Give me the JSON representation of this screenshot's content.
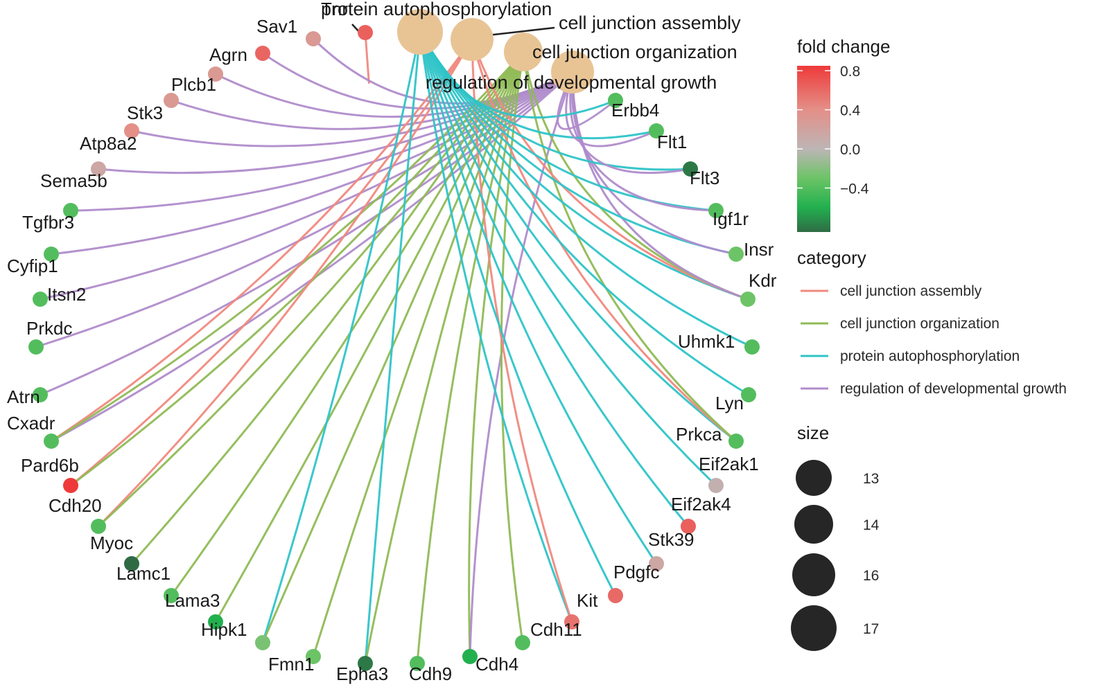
{
  "title": "",
  "categories": [
    {
      "id": "tnr",
      "label": "Tnr",
      "color": "#F0897E",
      "size": 13
    },
    {
      "id": "pa",
      "label": "protein autophosphorylation",
      "color": "#2EC4C8",
      "size": 17
    },
    {
      "id": "cja",
      "label": "cell junction assembly",
      "color": "#F0897E",
      "size": 16
    },
    {
      "id": "cjo",
      "label": "cell junction organization",
      "color": "#8FBA55",
      "size": 14
    },
    {
      "id": "rdg",
      "label": "regulation of developmental growth",
      "color": "#B08CCB",
      "size": 16
    }
  ],
  "genes": [
    {
      "label": "Tnr",
      "fc": 0.65
    },
    {
      "label": "Sav1",
      "fc": 0.3
    },
    {
      "label": "Agrn",
      "fc": 0.62
    },
    {
      "label": "Plcb1",
      "fc": 0.3
    },
    {
      "label": "Stk3",
      "fc": 0.3
    },
    {
      "label": "Atp8a2",
      "fc": 0.4
    },
    {
      "label": "Sema5b",
      "fc": 0.15
    },
    {
      "label": "Tgfbr3",
      "fc": -0.4
    },
    {
      "label": "Cyfip1",
      "fc": -0.4
    },
    {
      "label": "Itsn2",
      "fc": -0.4
    },
    {
      "label": "Prkdc",
      "fc": -0.4
    },
    {
      "label": "Atrn",
      "fc": -0.4
    },
    {
      "label": "Cxadr",
      "fc": -0.4
    },
    {
      "label": "Pard6b",
      "fc": 0.85
    },
    {
      "label": "Cdh20",
      "fc": -0.4
    },
    {
      "label": "Myoc",
      "fc": -0.85
    },
    {
      "label": "Lamc1",
      "fc": -0.4
    },
    {
      "label": "Lama3",
      "fc": -0.6
    },
    {
      "label": "Hipk1",
      "fc": -0.25
    },
    {
      "label": "Fmn1",
      "fc": -0.3
    },
    {
      "label": "Epha3",
      "fc": -0.8
    },
    {
      "label": "Cdh9",
      "fc": -0.4
    },
    {
      "label": "Cdh4",
      "fc": -0.6
    },
    {
      "label": "Cdh11",
      "fc": -0.4
    },
    {
      "label": "Kit",
      "fc": 0.55
    },
    {
      "label": "Pdgfc",
      "fc": 0.6
    },
    {
      "label": "Stk39",
      "fc": 0.15
    },
    {
      "label": "Eif2ak4",
      "fc": 0.65
    },
    {
      "label": "Eif2ak1",
      "fc": 0.05
    },
    {
      "label": "Prkca",
      "fc": -0.4
    },
    {
      "label": "Lyn",
      "fc": -0.4
    },
    {
      "label": "Uhmk1",
      "fc": -0.4
    },
    {
      "label": "Kdr",
      "fc": -0.3
    },
    {
      "label": "Insr",
      "fc": -0.3
    },
    {
      "label": "Igf1r",
      "fc": -0.4
    },
    {
      "label": "Flt3",
      "fc": -0.8
    },
    {
      "label": "Flt1",
      "fc": -0.4
    },
    {
      "label": "Erbb4",
      "fc": -0.4
    }
  ],
  "edges": [
    [
      "Tnr",
      "tnr"
    ],
    [
      "Sav1",
      "rdg"
    ],
    [
      "Agrn",
      "rdg"
    ],
    [
      "Plcb1",
      "rdg"
    ],
    [
      "Stk3",
      "rdg"
    ],
    [
      "Atp8a2",
      "rdg"
    ],
    [
      "Sema5b",
      "rdg"
    ],
    [
      "Tgfbr3",
      "rdg"
    ],
    [
      "Cyfip1",
      "rdg"
    ],
    [
      "Itsn2",
      "rdg"
    ],
    [
      "Prkdc",
      "rdg"
    ],
    [
      "Atrn",
      "rdg"
    ],
    [
      "Cxadr",
      "rdg"
    ],
    [
      "Cxadr",
      "cja"
    ],
    [
      "Cxadr",
      "cjo"
    ],
    [
      "Pard6b",
      "cja"
    ],
    [
      "Pard6b",
      "cjo"
    ],
    [
      "Cdh20",
      "cja"
    ],
    [
      "Cdh20",
      "cjo"
    ],
    [
      "Myoc",
      "cjo"
    ],
    [
      "Lamc1",
      "cjo"
    ],
    [
      "Lama3",
      "cjo"
    ],
    [
      "Hipk1",
      "pa"
    ],
    [
      "Hipk1",
      "cjo"
    ],
    [
      "Fmn1",
      "cjo"
    ],
    [
      "Epha3",
      "pa"
    ],
    [
      "Epha3",
      "cjo"
    ],
    [
      "Cdh9",
      "cjo"
    ],
    [
      "Cdh4",
      "cjo"
    ],
    [
      "Cdh4",
      "rdg"
    ],
    [
      "Cdh11",
      "cjo"
    ],
    [
      "Kit",
      "pa"
    ],
    [
      "Kit",
      "cja"
    ],
    [
      "Pdgfc",
      "pa"
    ],
    [
      "Stk39",
      "pa"
    ],
    [
      "Eif2ak4",
      "pa"
    ],
    [
      "Eif2ak1",
      "pa"
    ],
    [
      "Prkca",
      "pa"
    ],
    [
      "Prkca",
      "cja"
    ],
    [
      "Prkca",
      "cjo"
    ],
    [
      "Lyn",
      "pa"
    ],
    [
      "Uhmk1",
      "pa"
    ],
    [
      "Kdr",
      "pa"
    ],
    [
      "Kdr",
      "cja"
    ],
    [
      "Kdr",
      "cjo"
    ],
    [
      "Kdr",
      "rdg"
    ],
    [
      "Insr",
      "pa"
    ],
    [
      "Insr",
      "rdg"
    ],
    [
      "Igf1r",
      "pa"
    ],
    [
      "Igf1r",
      "rdg"
    ],
    [
      "Flt3",
      "pa"
    ],
    [
      "Flt3",
      "rdg"
    ],
    [
      "Flt1",
      "pa"
    ],
    [
      "Flt1",
      "rdg"
    ],
    [
      "Erbb4",
      "pa"
    ],
    [
      "Erbb4",
      "rdg"
    ]
  ],
  "legend": {
    "fold_change": {
      "title": "fold change",
      "ticks": [
        "0.8",
        "0.4",
        "0.0",
        "−0.4"
      ],
      "stops": [
        {
          "value": 0.85,
          "color": "#EE3A3A"
        },
        {
          "value": 0.4,
          "color": "#E48F88"
        },
        {
          "value": 0.0,
          "color": "#BDB5B5"
        },
        {
          "value": -0.3,
          "color": "#6CC466"
        },
        {
          "value": -0.6,
          "color": "#22B04F"
        },
        {
          "value": -0.85,
          "color": "#2E6B45"
        }
      ]
    },
    "category": {
      "title": "category",
      "items": [
        {
          "label": "cell junction assembly",
          "color": "#F0897E"
        },
        {
          "label": "cell junction organization",
          "color": "#8FBA55"
        },
        {
          "label": "protein autophosphorylation",
          "color": "#2EC4C8"
        },
        {
          "label": "regulation of developmental growth",
          "color": "#B08CCB"
        }
      ]
    },
    "size": {
      "title": "size",
      "items": [
        {
          "label": "13",
          "value": 13
        },
        {
          "label": "14",
          "value": 14
        },
        {
          "label": "16",
          "value": 16
        },
        {
          "label": "17",
          "value": 17
        }
      ]
    }
  },
  "colors": {
    "category_node": "#E8C495",
    "size_legend_dot": "#262626",
    "text": "#1a1a1a"
  }
}
